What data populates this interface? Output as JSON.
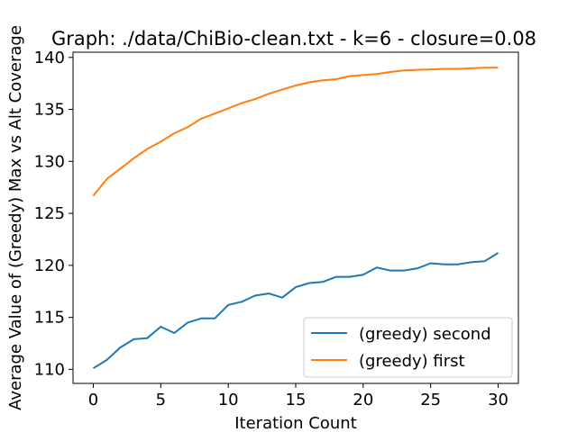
{
  "chart_data": {
    "type": "line",
    "title": "Graph: ./data/ChiBio-clean.txt - k=6 - closure=0.08",
    "xlabel": "Iteration Count",
    "ylabel": "Average Value of (Greedy) Max vs Alt Coverage",
    "xlim": [
      -1.5,
      31.5
    ],
    "ylim": [
      108.65,
      140.5
    ],
    "xticks": [
      0,
      5,
      10,
      15,
      20,
      25,
      30
    ],
    "yticks": [
      110,
      115,
      120,
      125,
      130,
      135,
      140
    ],
    "grid": false,
    "legend_position": "lower right",
    "x": [
      0,
      1,
      2,
      3,
      4,
      5,
      6,
      7,
      8,
      9,
      10,
      11,
      12,
      13,
      14,
      15,
      16,
      17,
      18,
      19,
      20,
      21,
      22,
      23,
      24,
      25,
      26,
      27,
      28,
      29,
      30
    ],
    "series": [
      {
        "name": "(greedy) second",
        "color": "#1f77b4",
        "values": [
          110.1,
          110.9,
          112.1,
          112.9,
          113.0,
          114.1,
          113.5,
          114.5,
          114.9,
          114.9,
          116.2,
          116.5,
          117.1,
          117.3,
          116.9,
          117.9,
          118.3,
          118.4,
          118.9,
          118.9,
          119.1,
          119.8,
          119.5,
          119.5,
          119.7,
          120.2,
          120.1,
          120.1,
          120.3,
          120.4,
          121.2
        ]
      },
      {
        "name": "(greedy) first",
        "color": "#ff7f0e",
        "values": [
          126.7,
          128.3,
          129.3,
          130.3,
          131.2,
          131.9,
          132.7,
          133.3,
          134.1,
          134.6,
          135.1,
          135.6,
          136.0,
          136.5,
          136.9,
          137.3,
          137.6,
          137.8,
          137.9,
          138.2,
          138.3,
          138.4,
          138.6,
          138.75,
          138.8,
          138.85,
          138.9,
          138.9,
          138.95,
          139.0,
          139.0
        ]
      }
    ]
  }
}
